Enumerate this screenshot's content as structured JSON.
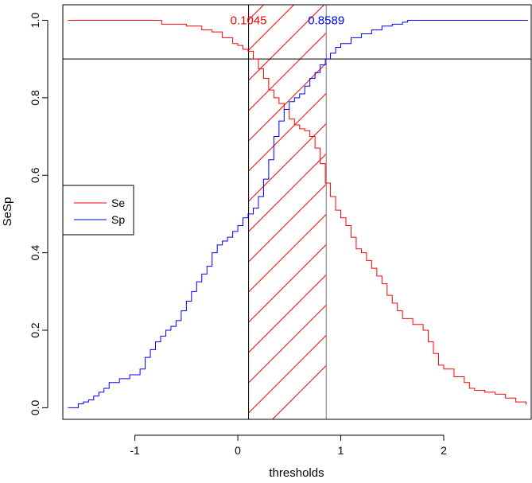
{
  "chart_data": {
    "type": "line",
    "xlabel": "thresholds",
    "ylabel": "SeSp",
    "xlim": [
      -1.7,
      2.85
    ],
    "ylim": [
      -0.03,
      1.04
    ],
    "x_ticks": [
      -1,
      0,
      1,
      2
    ],
    "x_tick_labels": [
      "-1",
      "0",
      "1",
      "2"
    ],
    "y_ticks": [
      0.0,
      0.2,
      0.4,
      0.6,
      0.8,
      1.0
    ],
    "y_tick_labels": [
      "0.0",
      "0.2",
      "0.4",
      "0.6",
      "0.8",
      "1.0"
    ],
    "grid": false,
    "legend": {
      "position": "left",
      "entries": [
        {
          "label": "Se",
          "color": "#ff0000"
        },
        {
          "label": "Sp",
          "color": "#0000ff"
        }
      ]
    },
    "reference_line_y": 0.9,
    "shaded_interval": {
      "from": 0.1045,
      "to": 0.8589,
      "pattern": "diagonal-hatch",
      "color": "#ff0000"
    },
    "annotations": [
      {
        "text": "0.1045",
        "x": 0.1045,
        "y": 1.0,
        "color": "#ff0000"
      },
      {
        "text": "0.8589",
        "x": 0.8589,
        "y": 1.0,
        "color": "#0000ff"
      }
    ],
    "series": [
      {
        "name": "Se",
        "color": "#ff0000",
        "points": [
          [
            -1.65,
            1.0
          ],
          [
            -0.78,
            1.0
          ],
          [
            -0.74,
            0.99
          ],
          [
            -0.6,
            0.99
          ],
          [
            -0.5,
            0.985
          ],
          [
            -0.35,
            0.975
          ],
          [
            -0.25,
            0.97
          ],
          [
            -0.15,
            0.955
          ],
          [
            -0.05,
            0.94
          ],
          [
            0.0,
            0.935
          ],
          [
            0.05,
            0.925
          ],
          [
            0.1,
            0.92
          ],
          [
            0.15,
            0.9
          ],
          [
            0.2,
            0.875
          ],
          [
            0.25,
            0.85
          ],
          [
            0.3,
            0.82
          ],
          [
            0.35,
            0.8
          ],
          [
            0.4,
            0.785
          ],
          [
            0.45,
            0.77
          ],
          [
            0.5,
            0.745
          ],
          [
            0.55,
            0.73
          ],
          [
            0.6,
            0.72
          ],
          [
            0.65,
            0.715
          ],
          [
            0.7,
            0.7
          ],
          [
            0.75,
            0.67
          ],
          [
            0.8,
            0.63
          ],
          [
            0.85,
            0.58
          ],
          [
            0.9,
            0.545
          ],
          [
            0.95,
            0.51
          ],
          [
            1.0,
            0.49
          ],
          [
            1.05,
            0.47
          ],
          [
            1.1,
            0.44
          ],
          [
            1.15,
            0.41
          ],
          [
            1.2,
            0.4
          ],
          [
            1.25,
            0.38
          ],
          [
            1.3,
            0.36
          ],
          [
            1.35,
            0.34
          ],
          [
            1.4,
            0.32
          ],
          [
            1.45,
            0.29
          ],
          [
            1.5,
            0.27
          ],
          [
            1.55,
            0.25
          ],
          [
            1.6,
            0.23
          ],
          [
            1.7,
            0.215
          ],
          [
            1.8,
            0.2
          ],
          [
            1.85,
            0.17
          ],
          [
            1.9,
            0.14
          ],
          [
            1.95,
            0.11
          ],
          [
            2.0,
            0.1
          ],
          [
            2.1,
            0.08
          ],
          [
            2.2,
            0.065
          ],
          [
            2.25,
            0.05
          ],
          [
            2.3,
            0.045
          ],
          [
            2.4,
            0.04
          ],
          [
            2.5,
            0.035
          ],
          [
            2.6,
            0.025
          ],
          [
            2.7,
            0.015
          ],
          [
            2.8,
            0.008
          ]
        ]
      },
      {
        "name": "Sp",
        "color": "#0000ff",
        "points": [
          [
            -1.65,
            0.0
          ],
          [
            -1.55,
            0.01
          ],
          [
            -1.5,
            0.015
          ],
          [
            -1.45,
            0.02
          ],
          [
            -1.4,
            0.03
          ],
          [
            -1.35,
            0.04
          ],
          [
            -1.3,
            0.05
          ],
          [
            -1.25,
            0.065
          ],
          [
            -1.15,
            0.075
          ],
          [
            -1.05,
            0.085
          ],
          [
            -0.95,
            0.1
          ],
          [
            -0.9,
            0.13
          ],
          [
            -0.85,
            0.15
          ],
          [
            -0.8,
            0.17
          ],
          [
            -0.75,
            0.185
          ],
          [
            -0.7,
            0.2
          ],
          [
            -0.65,
            0.21
          ],
          [
            -0.6,
            0.225
          ],
          [
            -0.55,
            0.25
          ],
          [
            -0.5,
            0.275
          ],
          [
            -0.45,
            0.3
          ],
          [
            -0.4,
            0.325
          ],
          [
            -0.35,
            0.345
          ],
          [
            -0.3,
            0.365
          ],
          [
            -0.25,
            0.4
          ],
          [
            -0.2,
            0.42
          ],
          [
            -0.15,
            0.43
          ],
          [
            -0.1,
            0.44
          ],
          [
            -0.05,
            0.455
          ],
          [
            0.0,
            0.47
          ],
          [
            0.05,
            0.49
          ],
          [
            0.1,
            0.5
          ],
          [
            0.15,
            0.515
          ],
          [
            0.2,
            0.545
          ],
          [
            0.25,
            0.59
          ],
          [
            0.3,
            0.64
          ],
          [
            0.35,
            0.7
          ],
          [
            0.4,
            0.74
          ],
          [
            0.45,
            0.77
          ],
          [
            0.5,
            0.79
          ],
          [
            0.55,
            0.8
          ],
          [
            0.6,
            0.81
          ],
          [
            0.65,
            0.83
          ],
          [
            0.7,
            0.85
          ],
          [
            0.75,
            0.865
          ],
          [
            0.8,
            0.885
          ],
          [
            0.85,
            0.9
          ],
          [
            0.9,
            0.915
          ],
          [
            0.95,
            0.93
          ],
          [
            1.0,
            0.94
          ],
          [
            1.1,
            0.955
          ],
          [
            1.2,
            0.965
          ],
          [
            1.3,
            0.975
          ],
          [
            1.4,
            0.985
          ],
          [
            1.5,
            0.99
          ],
          [
            1.6,
            0.995
          ],
          [
            1.65,
            1.0
          ],
          [
            2.82,
            1.0
          ]
        ]
      }
    ]
  }
}
